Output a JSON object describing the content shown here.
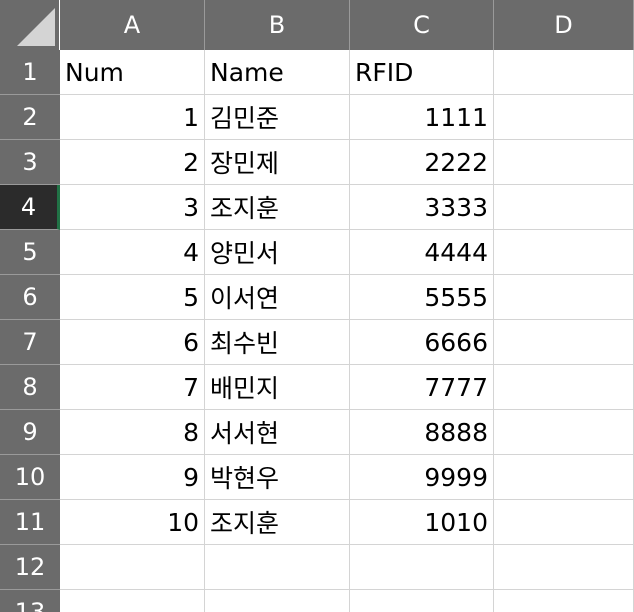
{
  "columns": [
    "A",
    "B",
    "C",
    "D"
  ],
  "rows": [
    {
      "num": "1",
      "a": "Num",
      "b": "Name",
      "c": "RFID",
      "d": ""
    },
    {
      "num": "2",
      "a": "1",
      "b": "김민준",
      "c": "1111",
      "d": ""
    },
    {
      "num": "3",
      "a": "2",
      "b": "장민제",
      "c": "2222",
      "d": ""
    },
    {
      "num": "4",
      "a": "3",
      "b": "조지훈",
      "c": "3333",
      "d": ""
    },
    {
      "num": "5",
      "a": "4",
      "b": "양민서",
      "c": "4444",
      "d": ""
    },
    {
      "num": "6",
      "a": "5",
      "b": "이서연",
      "c": "5555",
      "d": ""
    },
    {
      "num": "7",
      "a": "6",
      "b": "최수빈",
      "c": "6666",
      "d": ""
    },
    {
      "num": "8",
      "a": "7",
      "b": "배민지",
      "c": "7777",
      "d": ""
    },
    {
      "num": "9",
      "a": "8",
      "b": "서서현",
      "c": "8888",
      "d": ""
    },
    {
      "num": "10",
      "a": "9",
      "b": "박현우",
      "c": "9999",
      "d": ""
    },
    {
      "num": "11",
      "a": "10",
      "b": "조지훈",
      "c": "1010",
      "d": ""
    },
    {
      "num": "12",
      "a": "",
      "b": "",
      "c": "",
      "d": ""
    },
    {
      "num": "13",
      "a": "",
      "b": "",
      "c": "",
      "d": ""
    }
  ],
  "active_row": "4",
  "colors": {
    "header_bg": "#6b6b6b",
    "header_active_bg": "#2b2b2b",
    "header_text": "#ffffff",
    "gridline": "#d4d4d4",
    "selection_accent": "#217346"
  }
}
